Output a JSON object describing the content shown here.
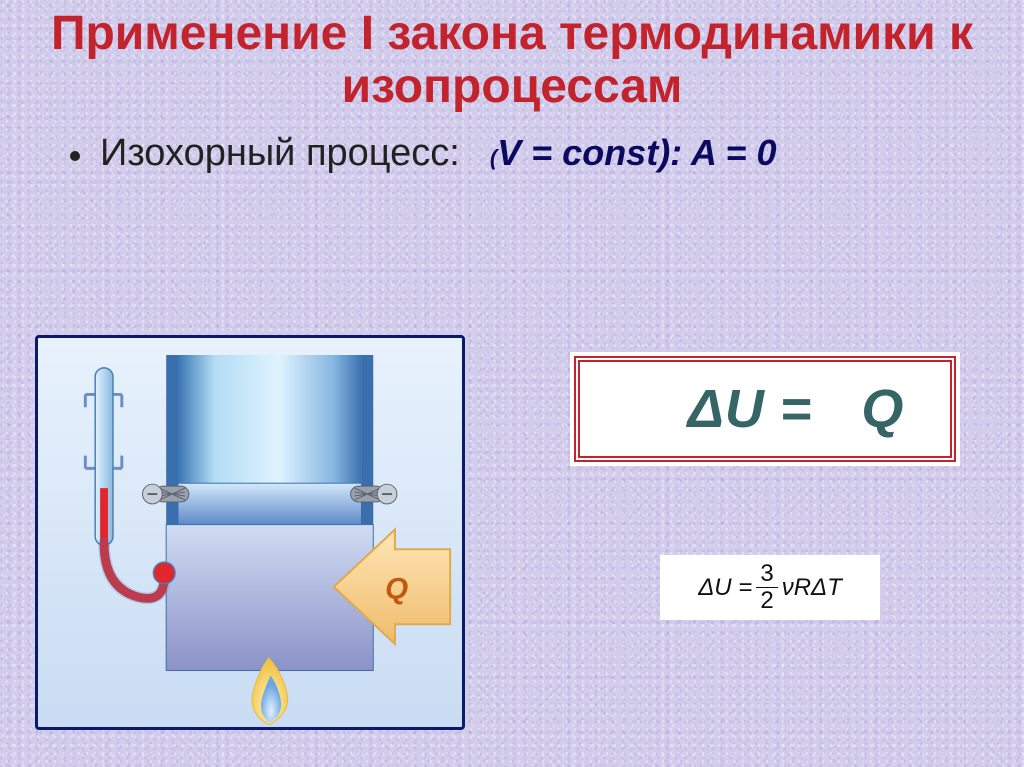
{
  "title": "Применение I закона термодинамики к изопроцессам",
  "subtitle": "Изохорный процесс:",
  "condition_prefix_paren": "(",
  "condition": "V = const): A = 0",
  "formula_main": {
    "delta": "Δ",
    "u": "U",
    "eq": " = ",
    "space": "  ",
    "q": "Q",
    "color": "#356665",
    "border_color": "#c2232c"
  },
  "formula_secondary": {
    "lhs": "ΔU = ",
    "frac_num": "3",
    "frac_den": "2",
    "rhs": "νRΔT"
  },
  "diagram": {
    "q_label": "Q",
    "colors": {
      "panel_border": "#0b1a6a",
      "cylinder_outer": "#2f62aa",
      "cylinder_fill_top": "#b9e2f7",
      "cylinder_fill_bottom": "#6098d4",
      "cylinder_wall": "#3a6fad",
      "piston_fill_light": "#cbe4f9",
      "piston_fill_dark": "#6a8fcb",
      "gas_fill_light": "#c8d7ef",
      "gas_fill_dark": "#8e94c5",
      "arrow_fill": "#f6cf88",
      "arrow_border": "#e0a94a",
      "thermo_glass_light": "#dff1ff",
      "thermo_glass_dark": "#8dbde0",
      "thermo_liquid": "#e2262e",
      "flame_outer": "#f7d874",
      "flame_inner": "#7fb4e8",
      "screw": "#9aa0aa",
      "q_text": "#c15a10"
    }
  }
}
